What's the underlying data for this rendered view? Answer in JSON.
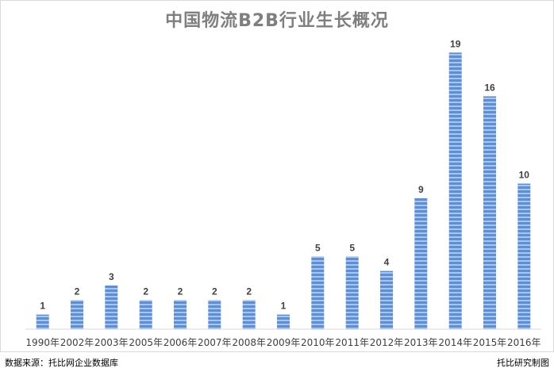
{
  "chart_data": {
    "type": "bar",
    "title": "中国物流B2B行业生长概况",
    "categories": [
      "1990年",
      "2002年",
      "2003年",
      "2005年",
      "2006年",
      "2007年",
      "2008年",
      "2009年",
      "2010年",
      "2011年",
      "2012年",
      "2013年",
      "2014年",
      "2015年",
      "2016年"
    ],
    "values": [
      1,
      2,
      3,
      2,
      2,
      2,
      2,
      1,
      5,
      5,
      4,
      9,
      19,
      16,
      10
    ],
    "data_labels": [
      "1",
      "2",
      "3",
      "2",
      "2",
      "2",
      "2",
      "1",
      "5",
      "5",
      "4",
      "9",
      "19",
      "16",
      "10"
    ],
    "xlabel": "",
    "ylabel": "",
    "ylim": [
      0,
      20
    ],
    "grid": false,
    "legend": "none",
    "bar_color": "#5b8fd6"
  },
  "footer": {
    "source": "数据来源：托比网企业数据库",
    "credit": "托比研究制图"
  }
}
